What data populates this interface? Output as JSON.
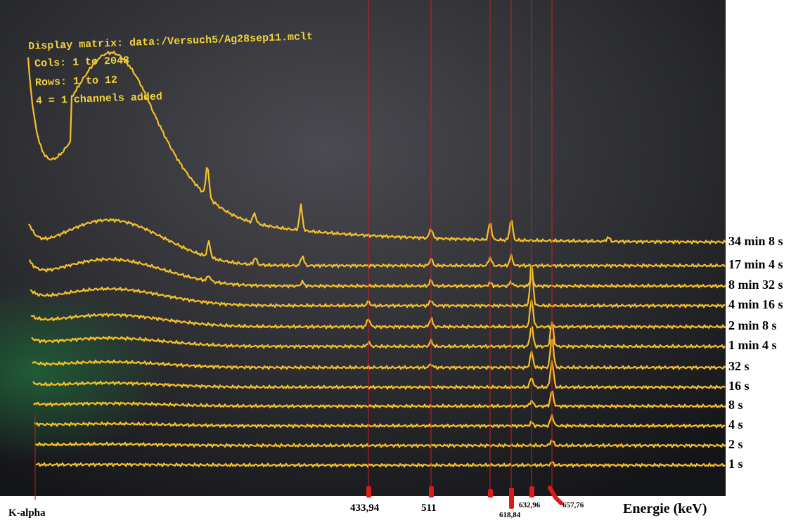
{
  "screen_text": [
    "Display matrix:  data:/Versuch5/Ag28sep11.mclt",
    "Cols: 1 to 2048",
    "Rows: 1 to 12",
    "4 = 1 channels added"
  ],
  "trace_labels": [
    "34 min 8 s",
    "17 min 4 s",
    "8 min 32 s",
    "4 min 16 s",
    "2 min 8 s",
    "1 min 4 s",
    "32 s",
    "16 s",
    "8 s",
    "4 s",
    "2 s",
    "1 s"
  ],
  "markers": [
    "K-alpha",
    "433,94",
    "511",
    "618,84",
    "632,96",
    "657,76"
  ],
  "axis_label": "Energie (keV)"
}
